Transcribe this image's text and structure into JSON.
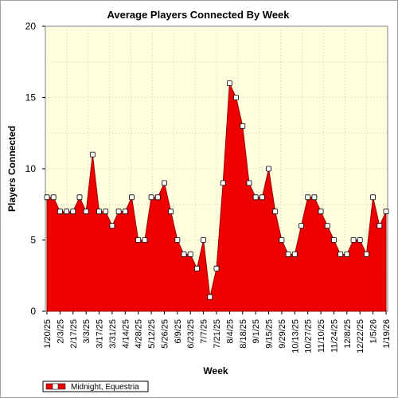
{
  "chart_data": {
    "type": "area",
    "title": "Average Players Connected By Week",
    "xlabel": "Week",
    "ylabel": "Players Connected",
    "ylim": [
      0,
      20
    ],
    "yticks": [
      0,
      5,
      10,
      15,
      20
    ],
    "grid": true,
    "legend_position": "bottom-left",
    "tick_labels_x": [
      "1/20/25",
      "2/3/25",
      "2/17/25",
      "3/3/25",
      "3/17/25",
      "3/31/25",
      "4/14/25",
      "4/28/25",
      "5/12/25",
      "5/26/25",
      "6/9/25",
      "6/23/25",
      "7/7/25",
      "7/21/25",
      "8/4/25",
      "8/18/25",
      "9/1/25",
      "9/15/25",
      "9/29/25",
      "10/13/25",
      "10/27/25",
      "11/10/25",
      "11/24/25",
      "12/8/25",
      "12/22/25",
      "1/5/26",
      "1/19/26"
    ],
    "series": [
      {
        "name": "Midnight, Equestria",
        "color": "#ee0000",
        "values": [
          8,
          8,
          7,
          7,
          7,
          8,
          7,
          11,
          7,
          7,
          6,
          7,
          7,
          8,
          5,
          5,
          8,
          8,
          9,
          7,
          5,
          4,
          4,
          3,
          5,
          1,
          3,
          9,
          16,
          15,
          13,
          9,
          8,
          8,
          10,
          7,
          5,
          4,
          4,
          6,
          8,
          8,
          7,
          6,
          5,
          4,
          4,
          5,
          5,
          4,
          8,
          6,
          7
        ]
      }
    ]
  },
  "colors": {
    "plot_background": "#ffffe0",
    "area_fill": "#ee0000",
    "marker_fill": "#ffffff",
    "grid": "#c8c8b0"
  }
}
